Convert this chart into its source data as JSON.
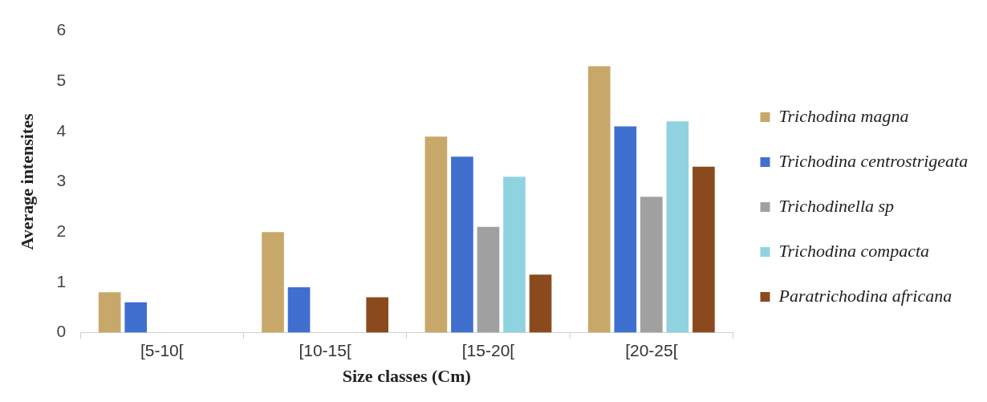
{
  "chart_data": {
    "type": "bar",
    "xlabel": "Size classes (Cm)",
    "ylabel": "Average intensites",
    "categories": [
      "[5-10[",
      "[10-15[",
      "[15-20[",
      "[20-25["
    ],
    "series": [
      {
        "name": "Trichodina magna",
        "color": "#c8a86a",
        "values": [
          0.8,
          2.0,
          3.9,
          5.3
        ]
      },
      {
        "name": "Trichodina centrostrigeata",
        "color": "#3f6fcf",
        "values": [
          0.6,
          0.9,
          3.5,
          4.1
        ]
      },
      {
        "name": "Trichodinella sp",
        "color": "#a0a0a0",
        "values": [
          null,
          null,
          2.1,
          2.7
        ]
      },
      {
        "name": "Trichodina compacta",
        "color": "#8fd3e0",
        "values": [
          null,
          null,
          3.1,
          4.2
        ]
      },
      {
        "name": "Paratrichodina africana",
        "color": "#8b4a1e",
        "values": [
          null,
          0.7,
          1.15,
          3.3
        ]
      }
    ],
    "ylim": [
      0,
      6
    ],
    "yticks": [
      0,
      1,
      2,
      3,
      4,
      5,
      6
    ],
    "grid": false,
    "legend": "right"
  }
}
